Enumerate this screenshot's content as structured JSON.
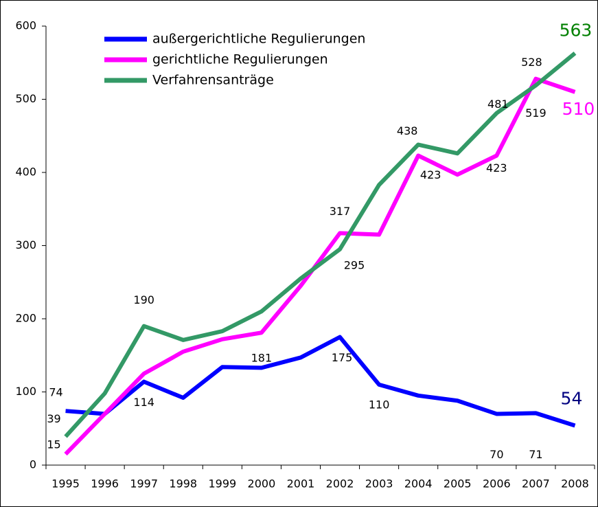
{
  "chart_data": {
    "type": "line",
    "categories": [
      "1995",
      "1996",
      "1997",
      "1998",
      "1999",
      "2000",
      "2001",
      "2002",
      "2003",
      "2004",
      "2005",
      "2006",
      "2007",
      "2008"
    ],
    "series": [
      {
        "name": "außergerichtliche Regulierungen",
        "color": "#0000ff",
        "values": [
          74,
          70,
          114,
          92,
          134,
          133,
          147,
          175,
          110,
          95,
          88,
          70,
          71,
          54
        ],
        "value_labels": [
          "74",
          null,
          "114",
          null,
          null,
          null,
          null,
          "175",
          "110",
          null,
          null,
          "70",
          "71",
          "54"
        ]
      },
      {
        "name": "gerichtliche Regulierungen",
        "color": "#ff00ff",
        "values": [
          15,
          70,
          125,
          155,
          172,
          181,
          245,
          317,
          315,
          423,
          397,
          423,
          528,
          510
        ],
        "value_labels": [
          "15",
          null,
          null,
          null,
          null,
          "181",
          null,
          "317",
          null,
          "423",
          null,
          "423",
          "528",
          "510"
        ]
      },
      {
        "name": "Verfahrensanträge",
        "color": "#339966",
        "values": [
          39,
          98,
          190,
          171,
          183,
          210,
          255,
          295,
          383,
          438,
          426,
          481,
          519,
          563
        ],
        "value_labels": [
          "39",
          null,
          "190",
          null,
          null,
          null,
          null,
          "295",
          null,
          "438",
          null,
          "481",
          "519",
          "563"
        ]
      }
    ],
    "ylim": [
      0,
      600
    ],
    "yticks": [
      0,
      100,
      200,
      300,
      400,
      500,
      600
    ],
    "legend": "upper left"
  }
}
